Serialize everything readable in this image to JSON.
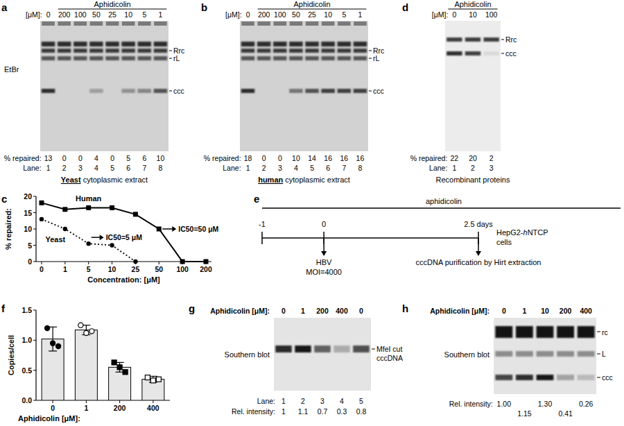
{
  "panels": {
    "a": {
      "letter": "a",
      "header": "Aphidicolin",
      "conc_label": "[μM]:",
      "conc": [
        0,
        200,
        100,
        50,
        25,
        10,
        5,
        1
      ],
      "stain": "EtBr",
      "bands": [
        "Rrc",
        "rL",
        "ccc"
      ],
      "repaired_label": "% repaired:",
      "repaired": [
        13,
        0,
        0,
        4,
        0,
        5,
        6,
        10
      ],
      "lane_label": "Lane:",
      "lanes": [
        1,
        2,
        3,
        4,
        5,
        6,
        7,
        8
      ],
      "caption": [
        "Yeast",
        " cytoplasmic extract"
      ]
    },
    "b": {
      "letter": "b",
      "header": "Aphidicolin",
      "conc_label": "[μM]:",
      "conc": [
        0,
        200,
        100,
        50,
        25,
        10,
        5,
        1
      ],
      "bands": [
        "Rrc",
        "rL",
        "ccc"
      ],
      "repaired_label": "% repaired:",
      "repaired": [
        18,
        0,
        0,
        10,
        14,
        16,
        16,
        16
      ],
      "lane_label": "Lane:",
      "lanes": [
        1,
        2,
        3,
        4,
        5,
        6,
        7,
        8
      ],
      "caption": [
        "human",
        " cytoplasmic extract"
      ]
    },
    "c": {
      "letter": "c"
    },
    "d": {
      "letter": "d",
      "header": "Aphidicolin",
      "conc_label": "[μM]:",
      "conc": [
        0,
        10,
        100
      ],
      "bands": [
        "Rrc",
        "ccc"
      ],
      "repaired_label": "% repaired:",
      "repaired": [
        22,
        20,
        2
      ],
      "lane_label": "Lane:",
      "lanes": [
        1,
        2,
        3
      ],
      "caption": [
        "Recombinant proteins"
      ]
    },
    "e": {
      "letter": "e",
      "drug": "aphidicolin",
      "times": [
        -1,
        0,
        2.5
      ],
      "time_labels": [
        "-1",
        "0",
        "2.5 days"
      ],
      "infection": [
        "HBV",
        "MOI=4000"
      ],
      "cells": [
        "HepG2-",
        "h",
        "NTCP",
        "cells"
      ],
      "harvest": "cccDNA purification by Hirt extraction"
    },
    "f": {
      "letter": "f"
    },
    "g": {
      "letter": "g",
      "conc_label": "Aphidicolin [μM]:",
      "conc": [
        0,
        1,
        200,
        400,
        0
      ],
      "method": "Southern blot",
      "bands": [
        "MfeI cut",
        "cccDNA"
      ],
      "lane_label": "Lane:",
      "lanes": [
        1,
        2,
        3,
        4,
        5
      ],
      "intensity_label": "Rel. intensity:",
      "intensity": [
        1,
        1.1,
        0.7,
        0.3,
        0.8
      ]
    },
    "h": {
      "letter": "h",
      "conc_label": "Aphidicolin [μM]:",
      "conc": [
        0,
        1,
        10,
        200,
        400
      ],
      "method": "Southern blot",
      "bands": [
        "rc",
        "L",
        "ccc"
      ],
      "intensity_label": "Rel. intensity:",
      "intensity": [
        1,
        1.15,
        1.3,
        0.41,
        0.26
      ],
      "intensity_labels": [
        "1.00",
        "1.15",
        "1.30",
        "0.41",
        "0.26"
      ]
    }
  },
  "chart_data": [
    {
      "type": "line",
      "xlabel": "Concentration: [μM]",
      "ylabel": "% repaired:",
      "categories": [
        "0",
        "1",
        "5",
        "10",
        "25",
        "50",
        "100",
        "200"
      ],
      "series": [
        {
          "name": "Human",
          "color": "#000000",
          "marker": "square",
          "line_style": "solid",
          "values": [
            18,
            16,
            16.5,
            16.5,
            14.5,
            10,
            0,
            0
          ]
        },
        {
          "name": "Yeast",
          "color": "#000000",
          "marker": "circle",
          "line_style": "dotted",
          "values": [
            13,
            10,
            5.5,
            5,
            0,
            null,
            null,
            null
          ]
        }
      ],
      "ylim": [
        0,
        20
      ],
      "yticks": [
        0,
        5,
        10,
        15,
        20
      ],
      "annotations": [
        "IC50=50 μM",
        "IC50=5 μM"
      ]
    },
    {
      "type": "bar",
      "xlabel": "Aphidicolin [μM]:",
      "ylabel": "Copies/cell",
      "categories": [
        "0",
        "1",
        "200",
        "400"
      ],
      "values": [
        1.02,
        1.17,
        0.55,
        0.35
      ],
      "errors": [
        0.2,
        0.08,
        0.08,
        0.05
      ],
      "points": [
        [
          1.2,
          0.95,
          0.9
        ],
        [
          1.25,
          1.12,
          1.15
        ],
        [
          0.63,
          0.55,
          0.47
        ],
        [
          0.38,
          0.33,
          0.35
        ]
      ],
      "color": "#e6e6e6",
      "ylim": [
        0,
        1.5
      ],
      "yticks": [
        {
          "value": 0,
          "label": "0.0"
        },
        0.5,
        {
          "value": 1,
          "label": "1.0"
        },
        1.5
      ]
    }
  ]
}
